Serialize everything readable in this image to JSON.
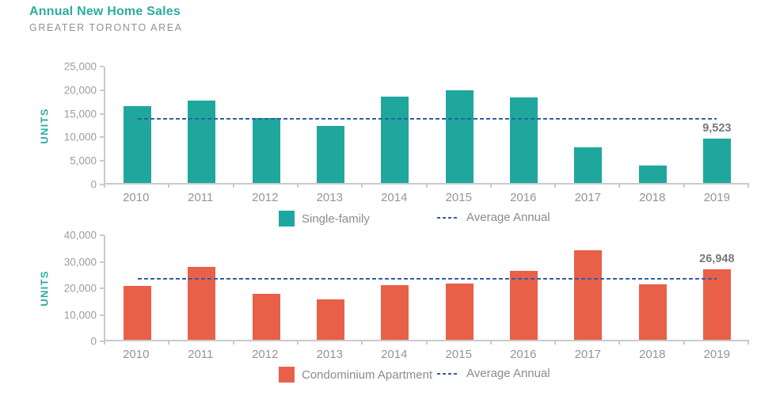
{
  "header": {
    "title": "Annual New Home Sales",
    "subtitle": "GREATER TORONTO AREA",
    "accent_color": "#2BACA2"
  },
  "chart_data": [
    {
      "type": "bar",
      "series_name": "Single-family",
      "ylabel": "UNITS",
      "categories": [
        "2010",
        "2011",
        "2012",
        "2013",
        "2014",
        "2015",
        "2016",
        "2017",
        "2018",
        "2019"
      ],
      "values": [
        16500,
        17700,
        13900,
        12300,
        18500,
        19900,
        18400,
        7600,
        3700,
        9523
      ],
      "ylim": [
        0,
        25000
      ],
      "ytick_labels": [
        "25,000",
        "20,000",
        "15,000",
        "10,000",
        "5,000",
        "0"
      ],
      "grid": "off",
      "legend_position": "bottom",
      "avg_line": {
        "label": "Average Annual",
        "value": 13800,
        "color": "#2E5FA7",
        "style": "dashed"
      },
      "annotations": [
        {
          "category": "2019",
          "text": "9,523"
        }
      ],
      "bar_color": "#1FA79E"
    },
    {
      "type": "bar",
      "series_name": "Condominium Apartment",
      "ylabel": "UNITS",
      "categories": [
        "2010",
        "2011",
        "2012",
        "2013",
        "2014",
        "2015",
        "2016",
        "2017",
        "2018",
        "2019"
      ],
      "values": [
        20700,
        27800,
        17700,
        15600,
        20900,
        21400,
        26300,
        34300,
        21300,
        26948
      ],
      "ylim": [
        0,
        40000
      ],
      "ytick_labels": [
        "40,000",
        "30,000",
        "20,000",
        "10,000",
        "0"
      ],
      "grid": "off",
      "legend_position": "bottom",
      "avg_line": {
        "label": "Average Annual",
        "value": 23300,
        "color": "#2E5FA7",
        "style": "dashed"
      },
      "annotations": [
        {
          "category": "2019",
          "text": "26,948"
        }
      ],
      "bar_color": "#E96049"
    }
  ]
}
